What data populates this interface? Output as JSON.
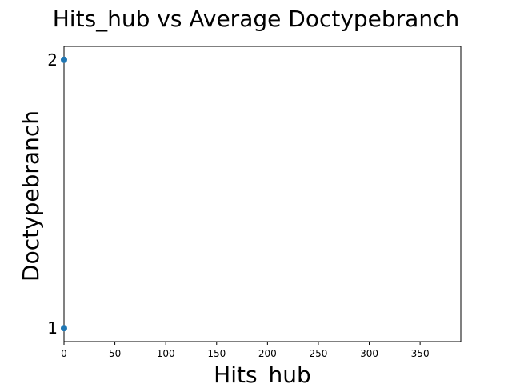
{
  "chart_data": {
    "type": "scatter",
    "title": "Hits_hub vs Average Doctypebranch",
    "xlabel": "Hits_hub",
    "ylabel": "Doctypebranch",
    "xlim": [
      0,
      390
    ],
    "ylim": [
      0.95,
      2.05
    ],
    "xticks": [
      "0",
      "50",
      "100",
      "150",
      "200",
      "250",
      "300",
      "350"
    ],
    "yticks": [
      "1",
      "2"
    ],
    "grid": false,
    "series": [
      {
        "color": "#1f77b4",
        "points": [
          {
            "x": 0,
            "y": 2
          },
          {
            "x": 0,
            "y": 1
          }
        ]
      }
    ]
  }
}
